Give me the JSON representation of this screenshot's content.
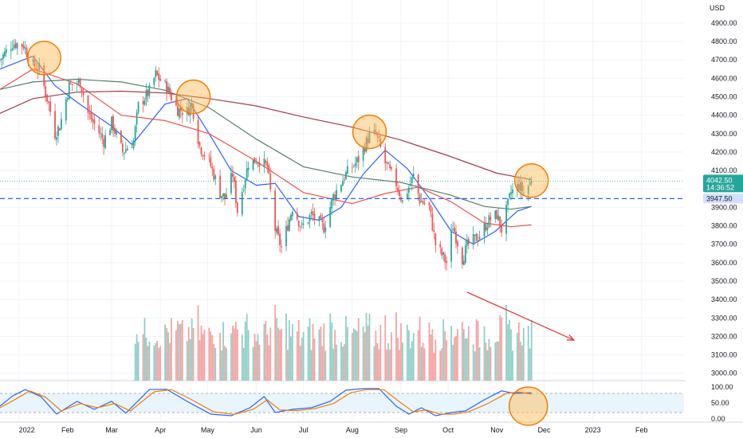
{
  "chart_data": {
    "type": "candlestick",
    "currency_label": "USD",
    "price_axis_ticks": [
      3000,
      3100,
      3200,
      3300,
      3400,
      3500,
      3600,
      3700,
      3800,
      3900,
      4000,
      4100,
      4200,
      4300,
      4400,
      4500,
      4600,
      4700,
      4800,
      4900
    ],
    "price_axis_tick_labels": [
      "3000.00",
      "3100.00",
      "3200.00",
      "3300.00",
      "3400.00",
      "3500.00",
      "3600.00",
      "3700.00",
      "3800.00",
      "3900.00",
      "4000.00",
      "4100.00",
      "4200.00",
      "4300.00",
      "4400.00",
      "4500.00",
      "4600.00",
      "4700.00",
      "4800.00",
      "4900.00"
    ],
    "ylim": [
      2960,
      4990
    ],
    "time_axis_labels": [
      "2022",
      "Feb",
      "Mar",
      "Apr",
      "May",
      "Jun",
      "Jul",
      "Aug",
      "Sep",
      "Oct",
      "Nov",
      "Dec",
      "2023",
      "Feb"
    ],
    "time_axis_dates": [
      "2022-01-01",
      "2022-02-01",
      "2022-03-01",
      "2022-04-01",
      "2022-05-01",
      "2022-06-01",
      "2022-07-01",
      "2022-08-01",
      "2022-09-01",
      "2022-10-01",
      "2022-11-01",
      "2022-12-01",
      "2023-01-01",
      "2023-02-01"
    ],
    "xlim": [
      "2021-12-20",
      "2023-02-28"
    ],
    "current_price": {
      "value": 4042.5,
      "label": "4042.50",
      "countdown": "14:36:52"
    },
    "horizontal_line": {
      "value": 3947.5,
      "label": "3947.50"
    },
    "close_path": [
      [
        "2021-12-20",
        4700
      ],
      [
        "2021-12-28",
        4790
      ],
      [
        "2022-01-04",
        4780
      ],
      [
        "2022-01-10",
        4670
      ],
      [
        "2022-01-14",
        4650
      ],
      [
        "2022-01-20",
        4460
      ],
      [
        "2022-01-24",
        4300
      ],
      [
        "2022-01-27",
        4340
      ],
      [
        "2022-02-02",
        4560
      ],
      [
        "2022-02-09",
        4580
      ],
      [
        "2022-02-14",
        4410
      ],
      [
        "2022-02-18",
        4350
      ],
      [
        "2022-02-24",
        4260
      ],
      [
        "2022-03-01",
        4360
      ],
      [
        "2022-03-08",
        4200
      ],
      [
        "2022-03-15",
        4260
      ],
      [
        "2022-03-18",
        4450
      ],
      [
        "2022-03-25",
        4530
      ],
      [
        "2022-03-29",
        4620
      ],
      [
        "2022-04-05",
        4550
      ],
      [
        "2022-04-12",
        4430
      ],
      [
        "2022-04-18",
        4420
      ],
      [
        "2022-04-21",
        4460
      ],
      [
        "2022-04-26",
        4230
      ],
      [
        "2022-05-02",
        4150
      ],
      [
        "2022-05-09",
        3980
      ],
      [
        "2022-05-12",
        3950
      ],
      [
        "2022-05-17",
        4080
      ],
      [
        "2022-05-20",
        3880
      ],
      [
        "2022-05-27",
        4140
      ],
      [
        "2022-06-02",
        4160
      ],
      [
        "2022-06-08",
        4120
      ],
      [
        "2022-06-13",
        3780
      ],
      [
        "2022-06-17",
        3680
      ],
      [
        "2022-06-24",
        3900
      ],
      [
        "2022-06-30",
        3790
      ],
      [
        "2022-07-06",
        3860
      ],
      [
        "2022-07-14",
        3790
      ],
      [
        "2022-07-20",
        3960
      ],
      [
        "2022-07-28",
        4080
      ],
      [
        "2022-08-05",
        4160
      ],
      [
        "2022-08-12",
        4290
      ],
      [
        "2022-08-16",
        4300
      ],
      [
        "2022-08-22",
        4140
      ],
      [
        "2022-08-29",
        4030
      ],
      [
        "2022-09-02",
        3930
      ],
      [
        "2022-09-09",
        4070
      ],
      [
        "2022-09-13",
        3940
      ],
      [
        "2022-09-19",
        3900
      ],
      [
        "2022-09-23",
        3700
      ],
      [
        "2022-09-30",
        3600
      ],
      [
        "2022-10-04",
        3800
      ],
      [
        "2022-10-10",
        3620
      ],
      [
        "2022-10-13",
        3690
      ],
      [
        "2022-10-21",
        3750
      ],
      [
        "2022-10-27",
        3830
      ],
      [
        "2022-11-01",
        3860
      ],
      [
        "2022-11-04",
        3780
      ],
      [
        "2022-11-10",
        3980
      ],
      [
        "2022-11-15",
        4020
      ],
      [
        "2022-11-18",
        3980
      ],
      [
        "2022-11-23",
        4042.5
      ]
    ],
    "moving_averages": [
      {
        "color": "#2962ff",
        "values": [
          [
            "2021-12-20",
            4650
          ],
          [
            "2022-01-10",
            4720
          ],
          [
            "2022-01-24",
            4560
          ],
          [
            "2022-02-07",
            4470
          ],
          [
            "2022-03-01",
            4340
          ],
          [
            "2022-03-14",
            4240
          ],
          [
            "2022-04-04",
            4460
          ],
          [
            "2022-04-18",
            4490
          ],
          [
            "2022-05-02",
            4300
          ],
          [
            "2022-05-16",
            4100
          ],
          [
            "2022-06-01",
            4020
          ],
          [
            "2022-06-13",
            4030
          ],
          [
            "2022-06-28",
            3850
          ],
          [
            "2022-07-11",
            3830
          ],
          [
            "2022-07-25",
            3900
          ],
          [
            "2022-08-08",
            4080
          ],
          [
            "2022-08-22",
            4210
          ],
          [
            "2022-09-05",
            4110
          ],
          [
            "2022-09-19",
            3950
          ],
          [
            "2022-10-03",
            3770
          ],
          [
            "2022-10-17",
            3700
          ],
          [
            "2022-10-31",
            3770
          ],
          [
            "2022-11-14",
            3880
          ],
          [
            "2022-11-23",
            3905
          ]
        ]
      },
      {
        "color": "#ef5350",
        "values": [
          [
            "2021-12-20",
            4540
          ],
          [
            "2022-01-10",
            4650
          ],
          [
            "2022-02-07",
            4570
          ],
          [
            "2022-03-07",
            4400
          ],
          [
            "2022-04-04",
            4370
          ],
          [
            "2022-05-02",
            4300
          ],
          [
            "2022-06-01",
            4150
          ],
          [
            "2022-07-01",
            3980
          ],
          [
            "2022-08-01",
            3920
          ],
          [
            "2022-08-22",
            3975
          ],
          [
            "2022-09-12",
            4010
          ],
          [
            "2022-10-03",
            3930
          ],
          [
            "2022-10-24",
            3815
          ],
          [
            "2022-11-10",
            3795
          ],
          [
            "2022-11-23",
            3805
          ]
        ]
      },
      {
        "color": "#5b7e6c",
        "values": [
          [
            "2021-12-20",
            4540
          ],
          [
            "2022-01-10",
            4580
          ],
          [
            "2022-02-07",
            4595
          ],
          [
            "2022-03-07",
            4580
          ],
          [
            "2022-04-04",
            4535
          ],
          [
            "2022-05-02",
            4440
          ],
          [
            "2022-06-01",
            4270
          ],
          [
            "2022-07-01",
            4120
          ],
          [
            "2022-08-01",
            4065
          ],
          [
            "2022-09-01",
            4035
          ],
          [
            "2022-10-03",
            3965
          ],
          [
            "2022-10-24",
            3905
          ],
          [
            "2022-11-10",
            3890
          ],
          [
            "2022-11-23",
            3905
          ]
        ]
      },
      {
        "color": "#a83a4a",
        "values": [
          [
            "2021-12-20",
            4410
          ],
          [
            "2022-01-10",
            4490
          ],
          [
            "2022-02-07",
            4525
          ],
          [
            "2022-03-07",
            4530
          ],
          [
            "2022-04-04",
            4520
          ],
          [
            "2022-05-02",
            4490
          ],
          [
            "2022-06-01",
            4450
          ],
          [
            "2022-07-01",
            4390
          ],
          [
            "2022-08-01",
            4335
          ],
          [
            "2022-09-01",
            4265
          ],
          [
            "2022-10-01",
            4180
          ],
          [
            "2022-11-01",
            4085
          ],
          [
            "2022-11-23",
            4050
          ]
        ]
      }
    ],
    "highlight_circles": [
      {
        "date": "2022-01-17",
        "price": 4710
      },
      {
        "date": "2022-04-22",
        "price": 4500
      },
      {
        "date": "2022-08-12",
        "price": 4310
      },
      {
        "date": "2022-11-23",
        "price": 4045
      }
    ],
    "volume_trend_arrow": {
      "from": [
        "2022-10-13",
        3440
      ],
      "to": [
        "2022-12-20",
        3180
      ]
    },
    "volume": {
      "max": 1.0
    },
    "oscillator": {
      "axis_ticks": [
        0,
        50,
        100
      ],
      "axis_tick_labels": [
        "0.00",
        "50.00",
        "100.00"
      ],
      "band": [
        20,
        80
      ],
      "series": [
        {
          "color": "#2962ff",
          "values": [
            [
              "2021-12-20",
              40
            ],
            [
              "2021-12-28",
              72
            ],
            [
              "2022-01-05",
              92
            ],
            [
              "2022-01-15",
              70
            ],
            [
              "2022-01-25",
              15
            ],
            [
              "2022-02-07",
              55
            ],
            [
              "2022-02-18",
              30
            ],
            [
              "2022-03-01",
              55
            ],
            [
              "2022-03-10",
              18
            ],
            [
              "2022-03-25",
              92
            ],
            [
              "2022-04-05",
              93
            ],
            [
              "2022-04-18",
              55
            ],
            [
              "2022-05-03",
              15
            ],
            [
              "2022-05-16",
              10
            ],
            [
              "2022-05-28",
              35
            ],
            [
              "2022-06-06",
              70
            ],
            [
              "2022-06-13",
              20
            ],
            [
              "2022-06-24",
              30
            ],
            [
              "2022-07-06",
              35
            ],
            [
              "2022-07-18",
              55
            ],
            [
              "2022-07-28",
              90
            ],
            [
              "2022-08-08",
              95
            ],
            [
              "2022-08-18",
              95
            ],
            [
              "2022-08-29",
              40
            ],
            [
              "2022-09-06",
              15
            ],
            [
              "2022-09-14",
              35
            ],
            [
              "2022-09-23",
              10
            ],
            [
              "2022-10-03",
              20
            ],
            [
              "2022-10-12",
              25
            ],
            [
              "2022-10-24",
              60
            ],
            [
              "2022-11-04",
              88
            ],
            [
              "2022-11-12",
              80
            ],
            [
              "2022-11-23",
              82
            ]
          ]
        },
        {
          "color": "#f57c00",
          "values": [
            [
              "2021-12-20",
              35
            ],
            [
              "2021-12-30",
              62
            ],
            [
              "2022-01-08",
              88
            ],
            [
              "2022-01-18",
              68
            ],
            [
              "2022-01-28",
              25
            ],
            [
              "2022-02-09",
              48
            ],
            [
              "2022-02-20",
              35
            ],
            [
              "2022-03-03",
              48
            ],
            [
              "2022-03-13",
              25
            ],
            [
              "2022-03-28",
              85
            ],
            [
              "2022-04-08",
              92
            ],
            [
              "2022-04-21",
              60
            ],
            [
              "2022-05-05",
              22
            ],
            [
              "2022-05-18",
              14
            ],
            [
              "2022-05-30",
              30
            ],
            [
              "2022-06-08",
              60
            ],
            [
              "2022-06-16",
              28
            ],
            [
              "2022-06-27",
              26
            ],
            [
              "2022-07-08",
              32
            ],
            [
              "2022-07-20",
              48
            ],
            [
              "2022-07-31",
              82
            ],
            [
              "2022-08-10",
              92
            ],
            [
              "2022-08-21",
              92
            ],
            [
              "2022-09-01",
              50
            ],
            [
              "2022-09-09",
              22
            ],
            [
              "2022-09-17",
              28
            ],
            [
              "2022-09-26",
              15
            ],
            [
              "2022-10-05",
              15
            ],
            [
              "2022-10-14",
              22
            ],
            [
              "2022-10-27",
              50
            ],
            [
              "2022-11-07",
              80
            ],
            [
              "2022-11-15",
              84
            ],
            [
              "2022-11-23",
              78
            ]
          ]
        }
      ]
    },
    "colors": {
      "up": "#26a69a",
      "down": "#ef5350",
      "up_volume": "#8fcfc6",
      "down_volume": "#f4a3a1",
      "circle_stroke": "#f57c00",
      "circle_fill": "#ffb74d",
      "arrow": "#e53935",
      "price_tag_bg": "#26a69a",
      "hline": "#2962ff",
      "hline_tag_bg": "#2962ff",
      "grid": "#f0f3fa"
    }
  }
}
